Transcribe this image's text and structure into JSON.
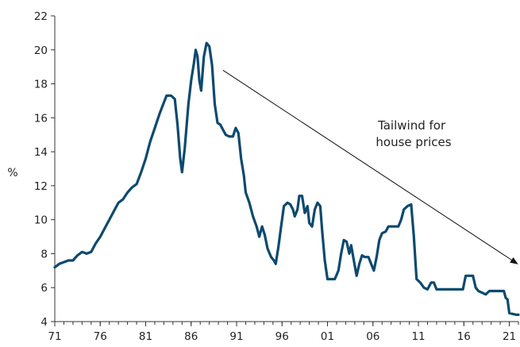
{
  "chart_data": {
    "type": "line",
    "title": "",
    "xlabel": "",
    "ylabel": "%",
    "xlim": [
      1971,
      2022
    ],
    "ylim": [
      4,
      22
    ],
    "x_tick_labels": [
      "71",
      "76",
      "81",
      "86",
      "91",
      "96",
      "01",
      "06",
      "11",
      "16",
      "21"
    ],
    "x_tick_values": [
      1971,
      1976,
      1981,
      1986,
      1991,
      1996,
      2001,
      2006,
      2011,
      2016,
      2021
    ],
    "y_tick_values": [
      4,
      6,
      8,
      10,
      12,
      14,
      16,
      18,
      20,
      22
    ],
    "grid": false,
    "legend": "none",
    "series": [
      {
        "color": "#0d4a6e",
        "points": [
          [
            1971.0,
            7.2
          ],
          [
            1971.5,
            7.4
          ],
          [
            1972.0,
            7.5
          ],
          [
            1972.5,
            7.6
          ],
          [
            1973.0,
            7.6
          ],
          [
            1973.5,
            7.9
          ],
          [
            1974.0,
            8.1
          ],
          [
            1974.5,
            8.0
          ],
          [
            1975.0,
            8.1
          ],
          [
            1975.5,
            8.6
          ],
          [
            1976.0,
            9.0
          ],
          [
            1976.5,
            9.5
          ],
          [
            1977.0,
            10.0
          ],
          [
            1977.5,
            10.5
          ],
          [
            1978.0,
            11.0
          ],
          [
            1978.5,
            11.2
          ],
          [
            1979.0,
            11.6
          ],
          [
            1979.5,
            11.9
          ],
          [
            1980.0,
            12.1
          ],
          [
            1980.5,
            12.8
          ],
          [
            1981.0,
            13.6
          ],
          [
            1981.5,
            14.6
          ],
          [
            1982.0,
            15.4
          ],
          [
            1982.5,
            16.2
          ],
          [
            1983.0,
            16.9
          ],
          [
            1983.3,
            17.3
          ],
          [
            1983.8,
            17.3
          ],
          [
            1984.2,
            17.1
          ],
          [
            1984.5,
            15.6
          ],
          [
            1984.8,
            13.6
          ],
          [
            1985.0,
            12.8
          ],
          [
            1985.3,
            14.2
          ],
          [
            1985.7,
            16.8
          ],
          [
            1986.0,
            18.2
          ],
          [
            1986.3,
            19.2
          ],
          [
            1986.5,
            20.0
          ],
          [
            1986.7,
            19.6
          ],
          [
            1986.9,
            18.2
          ],
          [
            1987.1,
            17.6
          ],
          [
            1987.4,
            19.6
          ],
          [
            1987.7,
            20.4
          ],
          [
            1988.0,
            20.2
          ],
          [
            1988.3,
            19.1
          ],
          [
            1988.6,
            16.8
          ],
          [
            1988.9,
            15.7
          ],
          [
            1989.2,
            15.6
          ],
          [
            1989.5,
            15.3
          ],
          [
            1989.8,
            15.0
          ],
          [
            1990.2,
            14.9
          ],
          [
            1990.6,
            14.9
          ],
          [
            1990.9,
            15.4
          ],
          [
            1991.2,
            15.1
          ],
          [
            1991.5,
            13.6
          ],
          [
            1991.8,
            12.6
          ],
          [
            1992.0,
            11.6
          ],
          [
            1992.4,
            11.0
          ],
          [
            1992.8,
            10.2
          ],
          [
            1993.2,
            9.6
          ],
          [
            1993.5,
            9.0
          ],
          [
            1993.8,
            9.6
          ],
          [
            1994.1,
            9.1
          ],
          [
            1994.4,
            8.3
          ],
          [
            1994.8,
            7.8
          ],
          [
            1995.1,
            7.6
          ],
          [
            1995.3,
            7.4
          ],
          [
            1995.6,
            8.4
          ],
          [
            1995.9,
            9.6
          ],
          [
            1996.2,
            10.8
          ],
          [
            1996.6,
            11.0
          ],
          [
            1996.9,
            10.9
          ],
          [
            1997.2,
            10.6
          ],
          [
            1997.4,
            10.2
          ],
          [
            1997.7,
            10.6
          ],
          [
            1997.9,
            11.4
          ],
          [
            1998.2,
            11.4
          ],
          [
            1998.5,
            10.4
          ],
          [
            1998.8,
            10.8
          ],
          [
            1999.0,
            9.8
          ],
          [
            1999.3,
            9.6
          ],
          [
            1999.6,
            10.6
          ],
          [
            1999.9,
            11.0
          ],
          [
            2000.2,
            10.8
          ],
          [
            2000.4,
            9.4
          ],
          [
            2000.7,
            7.6
          ],
          [
            2001.0,
            6.5
          ],
          [
            2001.4,
            6.5
          ],
          [
            2001.8,
            6.5
          ],
          [
            2002.2,
            7.0
          ],
          [
            2002.5,
            8.0
          ],
          [
            2002.8,
            8.8
          ],
          [
            2003.1,
            8.7
          ],
          [
            2003.4,
            8.0
          ],
          [
            2003.6,
            8.5
          ],
          [
            2003.9,
            7.6
          ],
          [
            2004.2,
            6.7
          ],
          [
            2004.5,
            7.4
          ],
          [
            2004.8,
            7.9
          ],
          [
            2005.1,
            7.8
          ],
          [
            2005.5,
            7.8
          ],
          [
            2005.8,
            7.4
          ],
          [
            2006.1,
            7.0
          ],
          [
            2006.4,
            7.8
          ],
          [
            2006.7,
            8.8
          ],
          [
            2007.0,
            9.2
          ],
          [
            2007.4,
            9.3
          ],
          [
            2007.7,
            9.6
          ],
          [
            2008.0,
            9.6
          ],
          [
            2008.4,
            9.6
          ],
          [
            2008.8,
            9.6
          ],
          [
            2009.1,
            10.0
          ],
          [
            2009.4,
            10.6
          ],
          [
            2009.8,
            10.8
          ],
          [
            2010.2,
            10.9
          ],
          [
            2010.5,
            9.0
          ],
          [
            2010.8,
            6.5
          ],
          [
            2011.2,
            6.3
          ],
          [
            2011.6,
            6.0
          ],
          [
            2012.0,
            5.9
          ],
          [
            2012.4,
            6.3
          ],
          [
            2012.7,
            6.3
          ],
          [
            2013.0,
            5.9
          ],
          [
            2013.5,
            5.9
          ],
          [
            2014.0,
            5.9
          ],
          [
            2014.5,
            5.9
          ],
          [
            2015.0,
            5.9
          ],
          [
            2015.5,
            5.9
          ],
          [
            2015.9,
            5.9
          ],
          [
            2016.2,
            6.7
          ],
          [
            2016.6,
            6.7
          ],
          [
            2017.0,
            6.7
          ],
          [
            2017.3,
            6.0
          ],
          [
            2017.6,
            5.8
          ],
          [
            2018.0,
            5.7
          ],
          [
            2018.4,
            5.6
          ],
          [
            2018.8,
            5.8
          ],
          [
            2019.2,
            5.8
          ],
          [
            2019.6,
            5.8
          ],
          [
            2020.0,
            5.8
          ],
          [
            2020.4,
            5.8
          ],
          [
            2020.6,
            5.4
          ],
          [
            2020.8,
            5.3
          ],
          [
            2021.0,
            4.5
          ],
          [
            2021.4,
            4.45
          ],
          [
            2021.8,
            4.4
          ],
          [
            2022.0,
            4.4
          ]
        ]
      }
    ],
    "annotations": [
      {
        "text_lines": [
          "Tailwind for",
          "house prices"
        ],
        "arrow_from": [
          1989.5,
          18.8
        ],
        "arrow_to": [
          2021.9,
          7.4
        ]
      }
    ]
  }
}
